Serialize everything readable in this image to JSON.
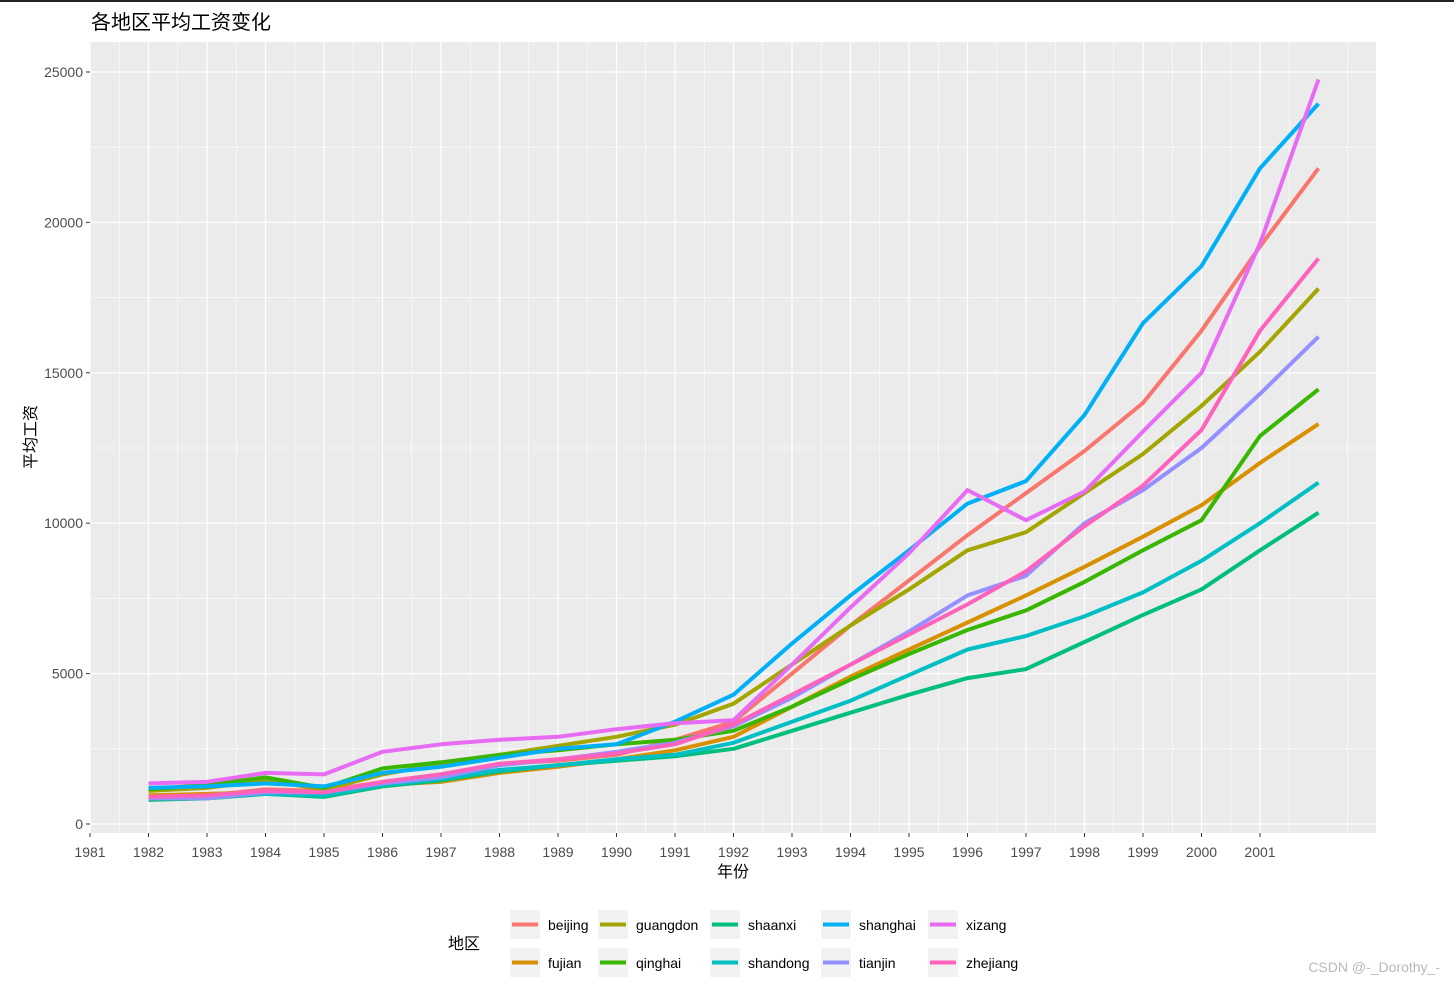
{
  "watermark": "CSDN @-_Dorothy_-",
  "chart_data": {
    "type": "line",
    "title": "各地区平均工资变化",
    "xlabel": "年份",
    "ylabel": "平均工资",
    "legend_title": "地区",
    "legend_position": "bottom",
    "grid": true,
    "xlim": [
      1981,
      2003
    ],
    "ylim": [
      0,
      25000
    ],
    "x_ticks": [
      "1981",
      "1982",
      "1983",
      "1984",
      "1985",
      "1986",
      "1987",
      "1988",
      "1989",
      "1990",
      "1991",
      "1992",
      "1993",
      "1994",
      "1995",
      "1996",
      "1997",
      "1998",
      "1999",
      "2000",
      "2001"
    ],
    "y_ticks": [
      "0",
      "5000",
      "10000",
      "15000",
      "20000",
      "25000"
    ],
    "x": [
      1982,
      1983,
      1984,
      1985,
      1986,
      1987,
      1988,
      1989,
      1990,
      1991,
      1992,
      1993,
      1994,
      1995,
      1996,
      1997,
      1998,
      1999,
      2000,
      2001,
      2002
    ],
    "series": [
      {
        "name": "beijing",
        "color": "#F8766D",
        "values": [
          900,
          950,
          1150,
          1100,
          1400,
          1650,
          2000,
          2100,
          2300,
          2800,
          3400,
          5000,
          6600,
          8100,
          9600,
          11000,
          12400,
          14000,
          16400,
          19200,
          21800
        ]
      },
      {
        "name": "fujian",
        "color": "#D89000",
        "values": [
          950,
          1000,
          1050,
          1050,
          1300,
          1400,
          1700,
          1900,
          2150,
          2450,
          2900,
          3900,
          4900,
          5800,
          6700,
          7600,
          8550,
          9550,
          10600,
          12000,
          13300
        ]
      },
      {
        "name": "guangdon",
        "color": "#A3A500",
        "values": [
          1100,
          1200,
          1450,
          1150,
          1650,
          2000,
          2300,
          2600,
          2900,
          3300,
          4000,
          5300,
          6600,
          7800,
          9100,
          9700,
          11000,
          12300,
          13900,
          15700,
          17800
        ]
      },
      {
        "name": "qinghai",
        "color": "#39B600",
        "values": [
          1150,
          1300,
          1550,
          1200,
          1850,
          2050,
          2300,
          2450,
          2650,
          2800,
          3100,
          3900,
          4800,
          5650,
          6450,
          7100,
          8050,
          9100,
          10100,
          12900,
          14450
        ]
      },
      {
        "name": "shaanxi",
        "color": "#00BF7D",
        "values": [
          800,
          850,
          1000,
          900,
          1250,
          1450,
          1750,
          1950,
          2100,
          2250,
          2500,
          3100,
          3700,
          4300,
          4850,
          5150,
          6050,
          6950,
          7800,
          9100,
          10350
        ]
      },
      {
        "name": "shandong",
        "color": "#00BFC4",
        "values": [
          850,
          900,
          1000,
          950,
          1300,
          1500,
          1800,
          1950,
          2150,
          2300,
          2700,
          3400,
          4100,
          4950,
          5800,
          6250,
          6900,
          7700,
          8750,
          10000,
          11350
        ]
      },
      {
        "name": "shanghai",
        "color": "#00B0F6",
        "values": [
          1200,
          1250,
          1350,
          1250,
          1700,
          1900,
          2200,
          2500,
          2650,
          3400,
          4300,
          6000,
          7600,
          9100,
          10650,
          11400,
          13600,
          16650,
          18550,
          21800,
          23950
        ]
      },
      {
        "name": "tianjin",
        "color": "#9590FF",
        "values": [
          850,
          850,
          1050,
          1050,
          1350,
          1550,
          1950,
          2150,
          2400,
          2700,
          3250,
          4200,
          5300,
          6400,
          7600,
          8250,
          10000,
          11100,
          12500,
          14300,
          16200
        ]
      },
      {
        "name": "xizang",
        "color": "#E76BF3",
        "values": [
          1350,
          1400,
          1700,
          1650,
          2400,
          2650,
          2800,
          2900,
          3150,
          3350,
          3450,
          5300,
          7200,
          9000,
          11100,
          10100,
          11050,
          13050,
          15000,
          19300,
          24750
        ]
      },
      {
        "name": "zhejiang",
        "color": "#FF62BC",
        "values": [
          900,
          950,
          1100,
          1050,
          1400,
          1650,
          2000,
          2150,
          2350,
          2650,
          3300,
          4300,
          5300,
          6300,
          7300,
          8400,
          9900,
          11250,
          13100,
          16400,
          18800
        ]
      }
    ]
  }
}
